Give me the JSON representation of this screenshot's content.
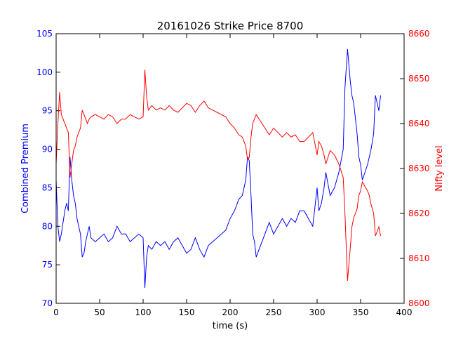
{
  "chart_data": {
    "type": "line",
    "title": "20161026 Strike Price 8700",
    "xlabel": "time (s)",
    "ylabel_left": "Combined Premium",
    "ylabel_right": "Nifty level",
    "xlim": [
      0,
      400
    ],
    "ylim_left": [
      70,
      105
    ],
    "ylim_right": [
      8600,
      8660
    ],
    "x_ticks": [
      0,
      50,
      100,
      150,
      200,
      250,
      300,
      350,
      400
    ],
    "y_ticks_left": [
      70,
      75,
      80,
      85,
      90,
      95,
      100,
      105
    ],
    "y_ticks_right": [
      8600,
      8610,
      8620,
      8630,
      8640,
      8650,
      8660
    ],
    "grid": false,
    "colors": {
      "left": "#0000ff",
      "right": "#ff0000",
      "axes": "#000000"
    },
    "series": [
      {
        "axis": "left",
        "x": [
          0,
          2,
          4,
          6,
          8,
          10,
          12,
          14,
          16,
          18,
          20,
          22,
          24,
          26,
          28,
          30,
          32,
          34,
          36,
          38,
          40,
          45,
          50,
          55,
          60,
          65,
          70,
          75,
          80,
          85,
          90,
          95,
          100,
          102,
          104,
          106,
          110,
          115,
          120,
          125,
          130,
          135,
          140,
          145,
          150,
          155,
          160,
          165,
          170,
          175,
          180,
          185,
          190,
          195,
          200,
          205,
          210,
          214,
          218,
          220,
          222,
          224,
          226,
          228,
          230,
          235,
          240,
          245,
          250,
          255,
          260,
          265,
          270,
          275,
          280,
          285,
          290,
          295,
          300,
          302,
          305,
          308,
          310,
          315,
          320,
          325,
          330,
          332,
          335,
          338,
          340,
          342,
          344,
          346,
          348,
          350,
          352,
          355,
          358,
          360,
          362,
          365,
          367,
          369,
          371,
          373
        ],
        "values": [
          86,
          80,
          78,
          79,
          80.5,
          82,
          83,
          82,
          89,
          86,
          84,
          83,
          81,
          80,
          79,
          76,
          76.5,
          78,
          79,
          80,
          78.5,
          78,
          78.5,
          79,
          78,
          78.5,
          80,
          79,
          79,
          78,
          78.5,
          79,
          78.5,
          72,
          76,
          77.5,
          77,
          78,
          77.5,
          78,
          77,
          78,
          78.5,
          77.5,
          76.5,
          77,
          78.5,
          77,
          76,
          77.5,
          78,
          78.5,
          79,
          79.5,
          81,
          82,
          83.5,
          84,
          86,
          89,
          88.5,
          84,
          79,
          78,
          76,
          77.5,
          79,
          80.5,
          79,
          80,
          81,
          80,
          81,
          80.5,
          82,
          82,
          81,
          80,
          85,
          82,
          83,
          85,
          87,
          84,
          85,
          87,
          90,
          98,
          103,
          99,
          97,
          96,
          94,
          92,
          89,
          88,
          86,
          87,
          88,
          89,
          90,
          92,
          97,
          96,
          95,
          97
        ]
      },
      {
        "axis": "right",
        "x": [
          0,
          2,
          4,
          6,
          8,
          10,
          12,
          14,
          16,
          18,
          20,
          22,
          24,
          26,
          28,
          30,
          32,
          34,
          36,
          38,
          40,
          45,
          50,
          55,
          60,
          65,
          70,
          75,
          80,
          85,
          90,
          95,
          100,
          102,
          104,
          106,
          110,
          115,
          120,
          125,
          130,
          135,
          140,
          145,
          150,
          155,
          160,
          165,
          170,
          175,
          180,
          185,
          190,
          195,
          200,
          205,
          210,
          214,
          218,
          220,
          222,
          224,
          226,
          228,
          230,
          235,
          240,
          245,
          250,
          255,
          260,
          265,
          270,
          275,
          280,
          285,
          290,
          295,
          300,
          302,
          305,
          308,
          310,
          315,
          320,
          325,
          330,
          332,
          335,
          338,
          340,
          342,
          344,
          346,
          348,
          350,
          352,
          355,
          358,
          360,
          362,
          365,
          367,
          369,
          371,
          373
        ],
        "values": [
          8631,
          8640,
          8647,
          8642,
          8641,
          8640,
          8639,
          8638,
          8628,
          8631,
          8634,
          8635,
          8637,
          8638,
          8639,
          8643,
          8642,
          8641,
          8640,
          8641,
          8641.5,
          8642,
          8641.5,
          8641,
          8642,
          8641.5,
          8640,
          8641,
          8641,
          8642,
          8641.5,
          8641,
          8641.5,
          8652,
          8646,
          8643,
          8644,
          8643,
          8643.5,
          8643,
          8644,
          8643,
          8642.5,
          8643.5,
          8644.5,
          8644,
          8642.5,
          8644,
          8645,
          8643.5,
          8643,
          8642.5,
          8642,
          8641.5,
          8640,
          8639,
          8637.5,
          8637,
          8635,
          8632,
          8632.5,
          8637,
          8640,
          8641,
          8642,
          8640.5,
          8639,
          8637.5,
          8639,
          8638,
          8637,
          8638,
          8637,
          8637.5,
          8636,
          8636,
          8637,
          8638,
          8633,
          8636,
          8635,
          8633,
          8631,
          8634,
          8633,
          8631,
          8628,
          8620,
          8605,
          8612,
          8617,
          8619,
          8620,
          8621,
          8624,
          8625,
          8627,
          8626,
          8625,
          8624,
          8622,
          8620,
          8615,
          8616,
          8617,
          8615
        ]
      }
    ]
  }
}
